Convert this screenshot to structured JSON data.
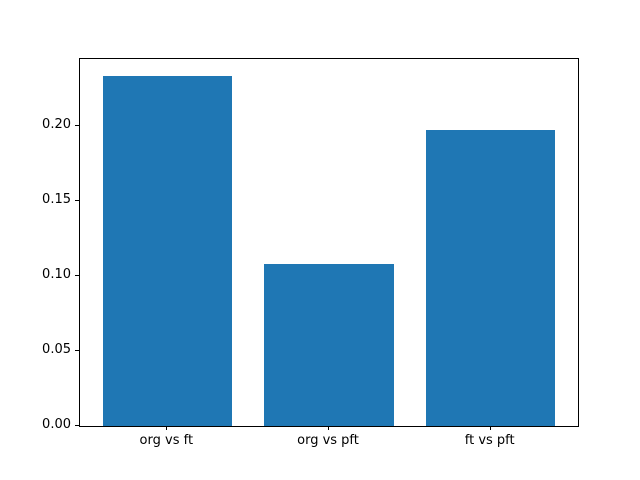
{
  "figure": {
    "background": "#ffffff",
    "spine_color": "#000000",
    "text_color": "#000000"
  },
  "chart_data": {
    "type": "bar",
    "title": "",
    "xlabel": "",
    "ylabel": "",
    "categories": [
      "org vs ft",
      "org vs pft",
      "ft vs pft"
    ],
    "values": [
      0.233,
      0.108,
      0.197
    ],
    "x_positions": [
      0,
      1,
      2
    ],
    "bar_width": 0.8,
    "bar_color": "#1f77b4",
    "xlim": [
      -0.54,
      2.54
    ],
    "ylim": [
      0,
      0.2446
    ],
    "ytick_values": [
      0.0,
      0.05,
      0.1,
      0.15,
      0.2
    ],
    "ytick_labels": [
      "0.00",
      "0.05",
      "0.10",
      "0.15",
      "0.20"
    ],
    "grid": false,
    "legend_position": "none"
  }
}
